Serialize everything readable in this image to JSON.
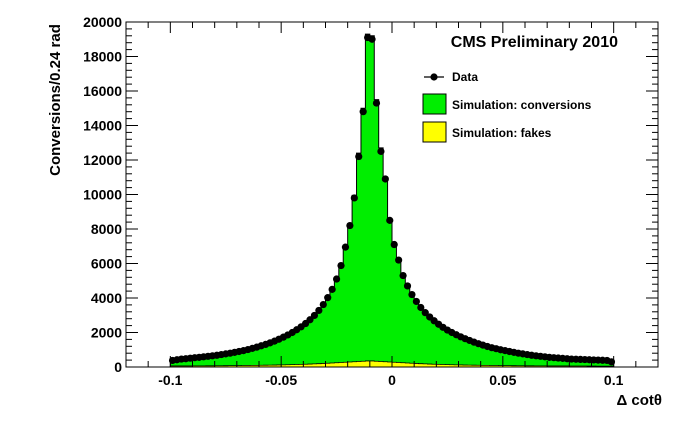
{
  "chart_data": {
    "type": "bar",
    "title": "CMS Preliminary 2010",
    "xlabel": "Δ cotθ",
    "ylabel": "Conversions/0.24 rad",
    "xlim": [
      -0.12,
      0.12
    ],
    "ylim": [
      0,
      20000
    ],
    "x_ticks": [
      -0.1,
      -0.05,
      0,
      0.05,
      0.1
    ],
    "x_tick_labels": [
      "-0.1",
      "-0.05",
      "0",
      "0.05",
      "0.1"
    ],
    "y_ticks": [
      0,
      2000,
      4000,
      6000,
      8000,
      10000,
      12000,
      14000,
      16000,
      18000,
      20000
    ],
    "y_tick_labels": [
      "0",
      "2000",
      "4000",
      "6000",
      "8000",
      "10000",
      "12000",
      "14000",
      "16000",
      "18000",
      "20000"
    ],
    "bins": {
      "min": -0.1,
      "max": 0.1,
      "count": 100
    },
    "grid": false,
    "legend_position": "top-right",
    "legend": [
      {
        "label": "Data",
        "kind": "marker",
        "color": "#000000"
      },
      {
        "label": "Simulation: conversions",
        "kind": "fill",
        "color": "#00ee00"
      },
      {
        "label": "Simulation: fakes",
        "kind": "fill",
        "color": "#ffff00"
      }
    ],
    "series": [
      {
        "name": "Data",
        "role": "data",
        "values": [
          380,
          420,
          460,
          480,
          510,
          540,
          560,
          590,
          620,
          650,
          680,
          720,
          760,
          800,
          850,
          900,
          950,
          1010,
          1080,
          1150,
          1230,
          1310,
          1400,
          1500,
          1610,
          1730,
          1860,
          2000,
          2160,
          2330,
          2520,
          2740,
          2990,
          3280,
          3620,
          4020,
          4500,
          5100,
          5880,
          6950,
          8200,
          9800,
          12200,
          14800,
          19100,
          19000,
          15300,
          12500,
          10900,
          8500,
          7100,
          6200,
          5300,
          4700,
          4200,
          3800,
          3450,
          3150,
          2900,
          2680,
          2480,
          2300,
          2140,
          2000,
          1870,
          1750,
          1640,
          1540,
          1440,
          1350,
          1270,
          1190,
          1120,
          1060,
          1000,
          950,
          900,
          850,
          800,
          760,
          720,
          680,
          650,
          620,
          590,
          560,
          540,
          520,
          500,
          480,
          460,
          450,
          440,
          430,
          420,
          410,
          400,
          390,
          380,
          300
        ]
      },
      {
        "name": "Simulation: conversions",
        "role": "stack",
        "values": [
          300,
          340,
          370,
          390,
          420,
          450,
          470,
          500,
          530,
          560,
          590,
          630,
          670,
          710,
          760,
          810,
          860,
          920,
          990,
          1060,
          1140,
          1220,
          1310,
          1410,
          1520,
          1640,
          1770,
          1910,
          2070,
          2240,
          2430,
          2650,
          2900,
          3190,
          3530,
          3930,
          4410,
          5010,
          5800,
          6900,
          8300,
          9950,
          12400,
          15000,
          19300,
          19200,
          15500,
          12700,
          11000,
          8600,
          7200,
          6300,
          5400,
          4800,
          4300,
          3900,
          3550,
          3250,
          3000,
          2780,
          2580,
          2400,
          2240,
          2100,
          1970,
          1850,
          1740,
          1640,
          1540,
          1450,
          1370,
          1290,
          1220,
          1160,
          1100,
          1050,
          1000,
          950,
          900,
          860,
          820,
          780,
          750,
          720,
          690,
          660,
          640,
          620,
          600,
          580,
          560,
          550,
          540,
          530,
          520,
          510,
          500,
          490,
          480,
          380
        ]
      },
      {
        "name": "Simulation: fakes",
        "role": "stack",
        "values": [
          60,
          60,
          60,
          62,
          62,
          64,
          64,
          66,
          68,
          70,
          72,
          74,
          76,
          78,
          80,
          82,
          85,
          88,
          92,
          96,
          100,
          104,
          108,
          113,
          118,
          124,
          130,
          137,
          144,
          152,
          160,
          170,
          180,
          192,
          205,
          218,
          232,
          246,
          260,
          275,
          290,
          305,
          320,
          335,
          350,
          350,
          335,
          320,
          305,
          290,
          275,
          260,
          246,
          232,
          218,
          205,
          192,
          180,
          170,
          160,
          152,
          144,
          137,
          130,
          124,
          118,
          113,
          108,
          104,
          100,
          96,
          92,
          88,
          85,
          82,
          80,
          78,
          76,
          74,
          72,
          70,
          68,
          66,
          64,
          64,
          62,
          62,
          60,
          60,
          60,
          58,
          58,
          56,
          56,
          54,
          54,
          52,
          52,
          50,
          50
        ]
      }
    ]
  },
  "colors": {
    "conversions": "#00ee00",
    "fakes": "#ffff00",
    "data_marker": "#000000",
    "axis": "#000000"
  }
}
